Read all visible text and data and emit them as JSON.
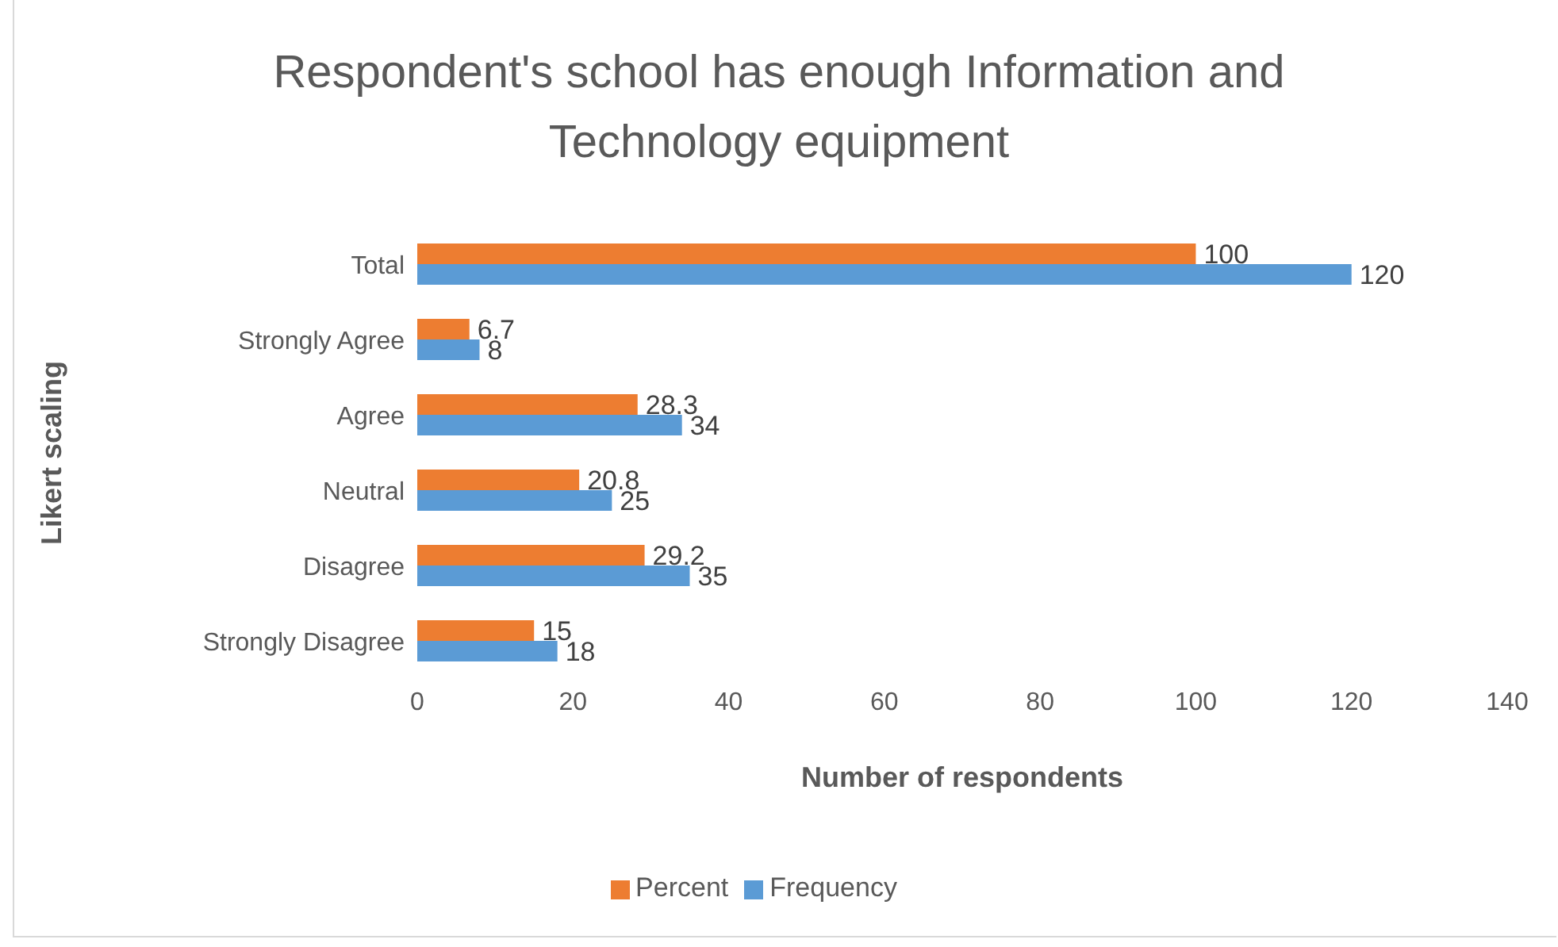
{
  "chart_data": {
    "type": "bar",
    "orientation": "horizontal",
    "title": "Respondent's school has enough Information and Technology equipment",
    "xlabel": "Number of respondents",
    "ylabel": "Likert scaling",
    "categories": [
      "Total",
      "Strongly Agree",
      "Agree",
      "Neutral",
      "Disagree",
      "Strongly Disagree"
    ],
    "series": [
      {
        "name": "Percent",
        "color": "#ed7d31",
        "values": [
          100,
          6.7,
          28.3,
          20.8,
          29.2,
          15
        ]
      },
      {
        "name": "Frequency",
        "color": "#5b9bd5",
        "values": [
          120,
          8,
          34,
          25,
          35,
          18
        ]
      }
    ],
    "xlim": [
      0,
      140
    ],
    "xticks": [
      0,
      20,
      40,
      60,
      80,
      100,
      120,
      140
    ],
    "grid": false,
    "legend": "bottom",
    "data_labels": true
  }
}
